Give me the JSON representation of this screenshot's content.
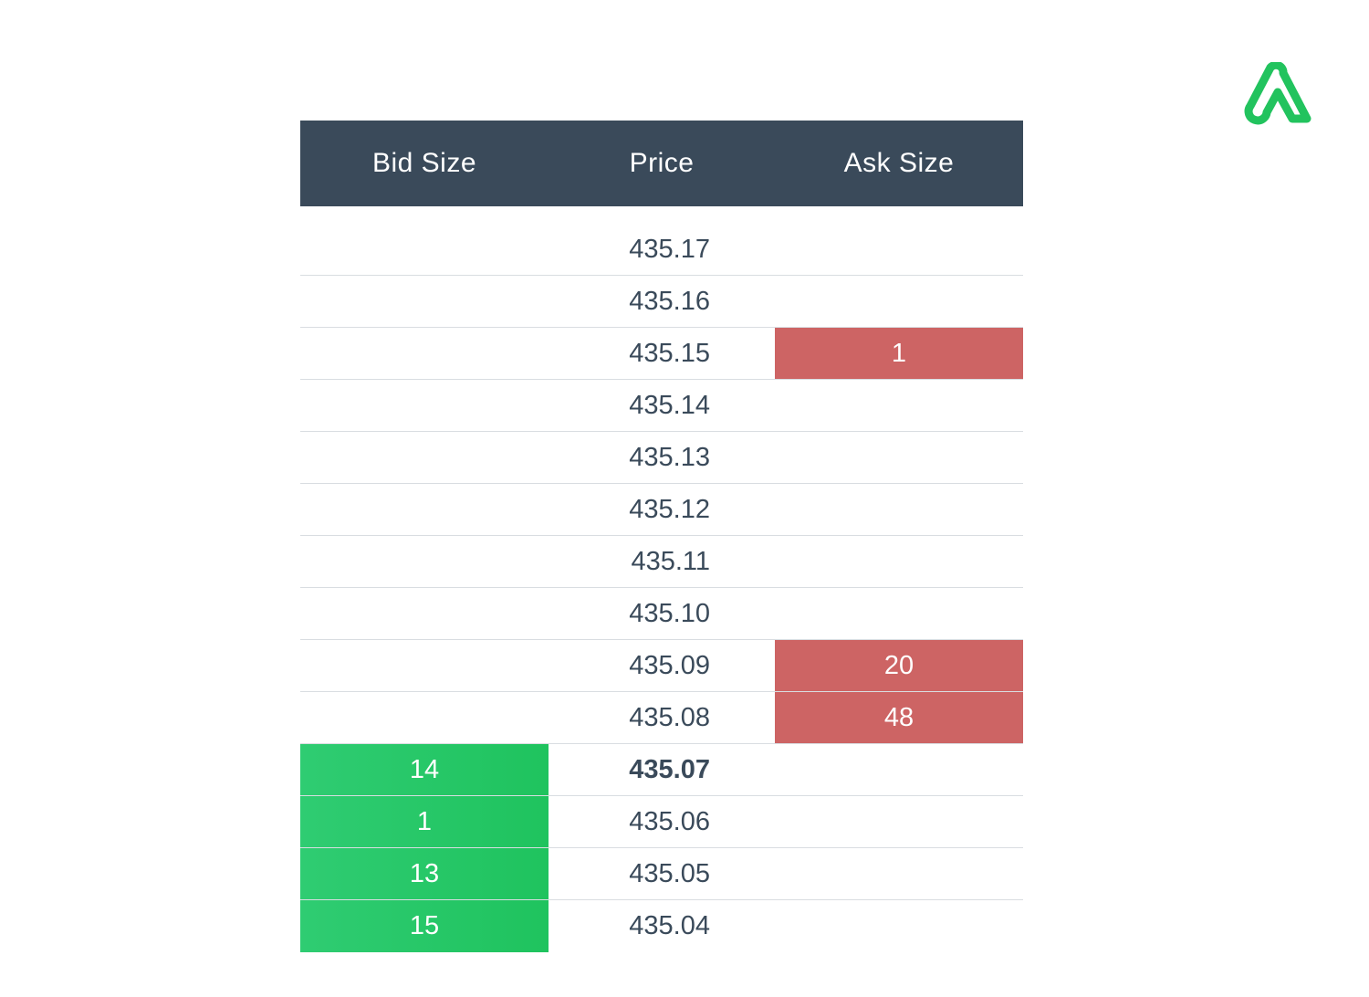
{
  "brand": {
    "logo_icon": "brand-logo-icon",
    "logo_color": "#22c35e"
  },
  "header": {
    "bid_label": "Bid Size",
    "price_label": "Price",
    "ask_label": "Ask Size",
    "bg": "#3a4a5a"
  },
  "colors": {
    "bid_fill": "#22c35e",
    "ask_fill": "#cd6464",
    "text": "#3a4a5a"
  },
  "rows": [
    {
      "bid": "",
      "price": "435.17",
      "ask": ""
    },
    {
      "bid": "",
      "price": "435.16",
      "ask": ""
    },
    {
      "bid": "",
      "price": "435.15",
      "ask": "1"
    },
    {
      "bid": "",
      "price": "435.14",
      "ask": ""
    },
    {
      "bid": "",
      "price": "435.13",
      "ask": ""
    },
    {
      "bid": "",
      "price": "435.12",
      "ask": ""
    },
    {
      "bid": "",
      "price": "435.11",
      "ask": ""
    },
    {
      "bid": "",
      "price": "435.10",
      "ask": ""
    },
    {
      "bid": "",
      "price": "435.09",
      "ask": "20"
    },
    {
      "bid": "",
      "price": "435.08",
      "ask": "48"
    },
    {
      "bid": "14",
      "price": "435.07",
      "ask": "",
      "emphasis": true
    },
    {
      "bid": "1",
      "price": "435.06",
      "ask": ""
    },
    {
      "bid": "13",
      "price": "435.05",
      "ask": ""
    },
    {
      "bid": "15",
      "price": "435.04",
      "ask": ""
    }
  ]
}
